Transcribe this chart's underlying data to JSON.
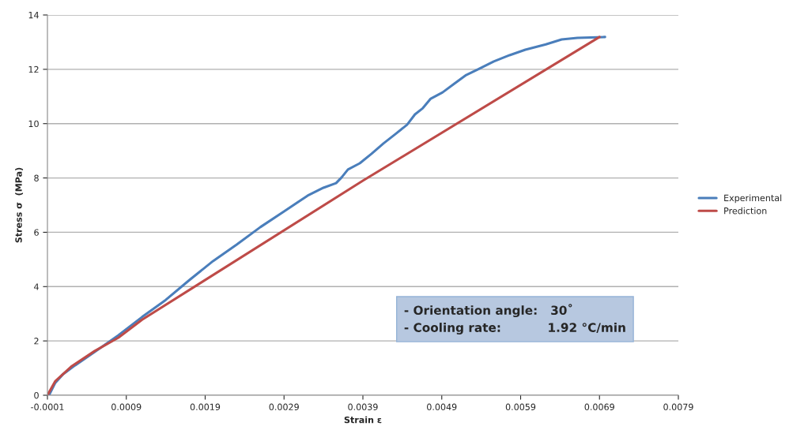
{
  "chart_data": {
    "type": "line",
    "xlabel": "Strain ε",
    "ylabel": "Stress σ  (MPa)",
    "xlim": [
      -0.0001,
      0.0079
    ],
    "xticks": [
      -0.0001,
      0.0009,
      0.0019,
      0.0029,
      0.0039,
      0.0049,
      0.0059,
      0.0069,
      0.0079
    ],
    "ylim": [
      0,
      14
    ],
    "yticks": [
      0,
      2,
      4,
      6,
      8,
      10,
      12,
      14
    ],
    "grid": "y",
    "legend": "right",
    "marker": "none",
    "line_style": "solid",
    "annotations": [
      "- Orientation angle:   30˚\n- Cooling rate:           1.92 °C/min"
    ],
    "series": [
      {
        "name": "Experimental",
        "color": "#4a7ebb",
        "x": [
          -8e-05,
          0.0,
          0.0001,
          0.00025,
          0.0005,
          0.0008,
          0.0011,
          0.0014,
          0.0017,
          0.002,
          0.0023,
          0.0026,
          0.0029,
          0.0032,
          0.0034,
          0.00356,
          0.00363,
          0.00371,
          0.00386,
          0.00401,
          0.00416,
          0.00431,
          0.00446,
          0.00456,
          0.00466,
          0.00476,
          0.00491,
          0.00506,
          0.00521,
          0.00536,
          0.00556,
          0.00576,
          0.00596,
          0.00622,
          0.00642,
          0.00662,
          0.00697
        ],
        "values": [
          0,
          0.46,
          0.78,
          1.1,
          1.6,
          2.21,
          2.88,
          3.51,
          4.24,
          4.94,
          5.55,
          6.19,
          6.77,
          7.35,
          7.64,
          7.81,
          8.02,
          8.31,
          8.54,
          8.89,
          9.27,
          9.61,
          9.96,
          10.34,
          10.57,
          10.92,
          11.15,
          11.47,
          11.79,
          12.0,
          12.29,
          12.52,
          12.72,
          12.92,
          13.1,
          13.16,
          13.19
        ]
      },
      {
        "name": "Prediction",
        "color": "#be4b48",
        "x": [
          -0.0001,
          0.0,
          0.0002,
          0.0005,
          0.0008,
          0.0011,
          0.0039,
          0.0069
        ],
        "values": [
          0,
          0.52,
          1.05,
          1.63,
          2.12,
          2.78,
          7.9,
          13.19
        ]
      }
    ]
  }
}
